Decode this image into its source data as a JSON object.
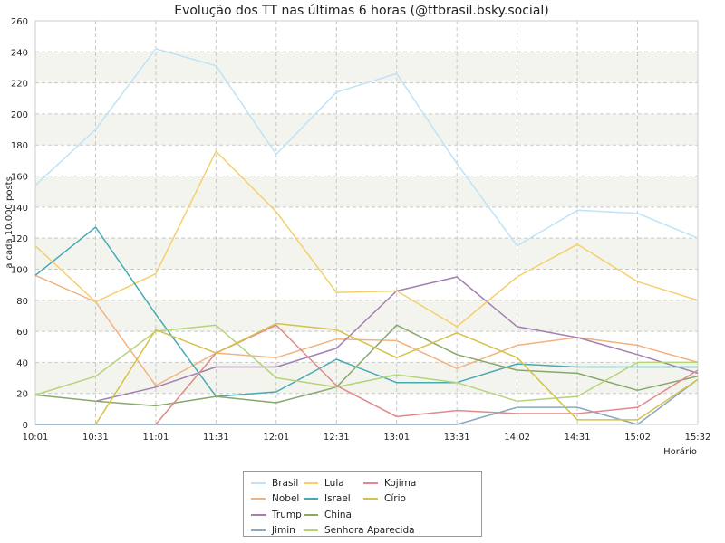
{
  "chart_data": {
    "type": "line",
    "title": "Evolução dos TT nas últimas 6 horas (@ttbrasil.bsky.social)",
    "xlabel": "Horário",
    "ylabel": "a cada 10.000 posts",
    "categories": [
      "10:01",
      "10:31",
      "11:01",
      "11:31",
      "12:01",
      "12:31",
      "13:01",
      "13:31",
      "14:02",
      "14:31",
      "15:02",
      "15:32"
    ],
    "ylim": [
      0,
      260
    ],
    "yticks": [
      0,
      20,
      40,
      60,
      80,
      100,
      120,
      140,
      160,
      180,
      200,
      220,
      240,
      260
    ],
    "grid": true,
    "legend_position": "bottom",
    "series": [
      {
        "name": "Brasil",
        "color": "#bfe3f5",
        "values": [
          154,
          190,
          242,
          231,
          174,
          214,
          226,
          168,
          115,
          138,
          136,
          120
        ]
      },
      {
        "name": "Nobel",
        "color": "#f2b27f",
        "values": [
          96,
          79,
          25,
          46,
          43,
          55,
          54,
          36,
          51,
          56,
          51,
          40
        ]
      },
      {
        "name": "Trump",
        "color": "#a27fb0",
        "values": [
          null,
          15,
          24,
          37,
          37,
          49,
          86,
          95,
          63,
          56,
          45,
          33
        ]
      },
      {
        "name": "Jimin",
        "color": "#8aa9c0",
        "values": [
          0,
          0,
          0,
          0,
          0,
          0,
          0,
          0,
          11,
          11,
          0,
          29
        ]
      },
      {
        "name": "Lula",
        "color": "#f5cf6b",
        "values": [
          115,
          79,
          97,
          176,
          137,
          85,
          86,
          63,
          95,
          116,
          92,
          80
        ]
      },
      {
        "name": "Israel",
        "color": "#45aab4",
        "values": [
          96,
          127,
          71,
          18,
          21,
          42,
          27,
          27,
          39,
          37,
          37,
          37
        ]
      },
      {
        "name": "China",
        "color": "#88a86b",
        "values": [
          19,
          15,
          12,
          18,
          14,
          24,
          64,
          45,
          35,
          33,
          22,
          31
        ]
      },
      {
        "name": "Senhora Aparecida",
        "color": "#b4d47a",
        "values": [
          19,
          31,
          60,
          64,
          30,
          24,
          32,
          27,
          15,
          18,
          40,
          40
        ]
      },
      {
        "name": "Kojima",
        "color": "#e08a8a",
        "values": [
          null,
          null,
          0,
          46,
          64,
          25,
          5,
          9,
          7,
          7,
          11,
          35
        ]
      },
      {
        "name": "Círio",
        "color": "#d4c24a",
        "values": [
          null,
          0,
          61,
          46,
          65,
          61,
          43,
          59,
          43,
          3,
          3,
          29
        ]
      }
    ]
  }
}
